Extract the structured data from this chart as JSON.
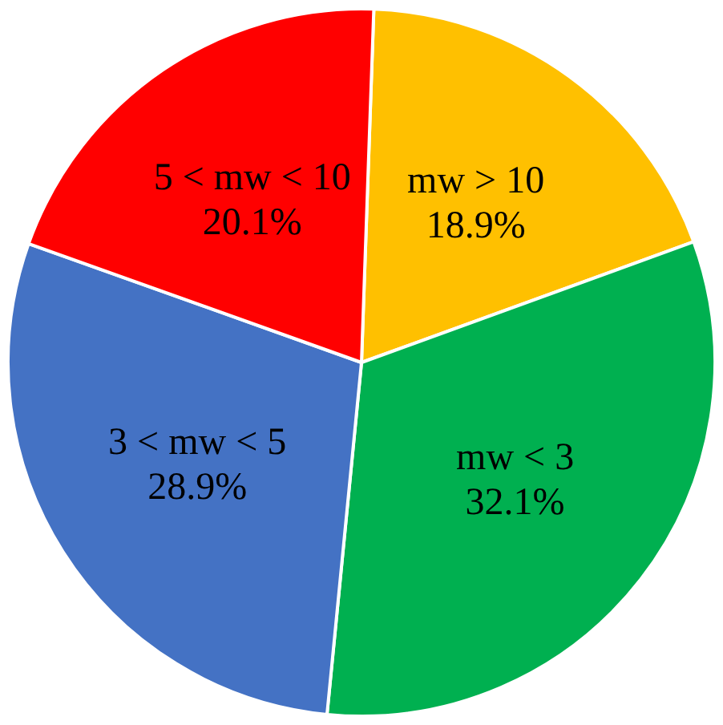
{
  "chart_data": {
    "type": "pie",
    "categories": [
      "mw > 10",
      "mw < 3",
      "3 < mw < 5",
      "5 < mw < 10"
    ],
    "values": [
      18.9,
      32.1,
      28.9,
      20.1
    ],
    "colors": [
      "#ffc000",
      "#00b050",
      "#4472c4",
      "#ff0000"
    ],
    "value_labels": [
      "18.9%",
      "32.1%",
      "28.9%",
      "20.1%"
    ],
    "legend": false
  }
}
